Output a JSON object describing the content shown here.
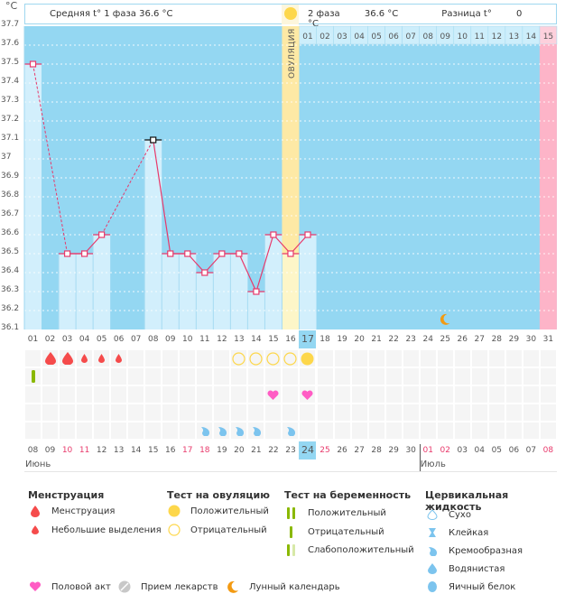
{
  "header": {
    "phase1_label": "Средняя t° 1 фаза",
    "phase1_value": "36.6 °C",
    "phase2_label": "2 фаза",
    "phase2_value": "36.6 °C",
    "diff_label": "Разница t°",
    "diff_value": "0 °C",
    "ovulation_label": "ОВУЛЯЦИЯ"
  },
  "chart_data": {
    "type": "line",
    "title": "",
    "ylabel": "°C",
    "xlabel": "",
    "ylim": [
      36.1,
      37.7
    ],
    "yticks": [
      "37.7",
      "37.6",
      "37.5",
      "37.4",
      "37.3",
      "37.2",
      "37.1",
      "37",
      "36.9",
      "36.8",
      "36.7",
      "36.6",
      "36.5",
      "36.4",
      "36.3",
      "36.2",
      "36.1"
    ],
    "cycle_days": [
      "01",
      "02",
      "03",
      "04",
      "05",
      "06",
      "07",
      "08",
      "09",
      "10",
      "11",
      "12",
      "13",
      "14",
      "15",
      "16",
      "17",
      "18",
      "19",
      "20",
      "21",
      "22",
      "23",
      "24",
      "25",
      "26",
      "27",
      "28",
      "29",
      "30",
      "31"
    ],
    "phase2_day_labels": [
      "01",
      "02",
      "03",
      "04",
      "05",
      "06",
      "07",
      "08",
      "09",
      "10",
      "11",
      "12",
      "13",
      "14",
      "15"
    ],
    "temperatures": [
      37.5,
      null,
      36.5,
      36.5,
      36.6,
      null,
      null,
      37.1,
      36.5,
      36.5,
      36.4,
      36.5,
      36.5,
      36.3,
      36.6,
      36.5,
      36.6,
      null,
      null,
      null,
      null,
      null,
      null,
      null,
      null,
      null,
      null,
      null,
      null,
      null,
      null
    ],
    "excluded_days": [
      8
    ],
    "ovulation_day": 16,
    "current_day": 17,
    "next_period_day": 31,
    "calendar_dates": [
      "08",
      "09",
      "10",
      "11",
      "12",
      "13",
      "14",
      "15",
      "16",
      "17",
      "18",
      "19",
      "20",
      "21",
      "22",
      "23",
      "24",
      "25",
      "26",
      "27",
      "28",
      "29",
      "30",
      "01",
      "02",
      "03",
      "04",
      "05",
      "06",
      "07",
      "08"
    ],
    "weekend_dates_idx": [
      2,
      3,
      9,
      10,
      17,
      23,
      24,
      30
    ],
    "months": [
      {
        "label": "Июнь",
        "start_idx": 0
      },
      {
        "label": "Июль",
        "start_idx": 23
      }
    ],
    "moon_day": 25,
    "markers": {
      "menstruation_heavy_days": [
        2,
        3
      ],
      "menstruation_light_days": [
        4,
        5,
        6
      ],
      "ovulation_test_negative_days": [
        13,
        14,
        15,
        16
      ],
      "ovulation_test_positive_days": [
        17
      ],
      "pregnancy_test_negative_days": [
        1
      ],
      "intercourse_days": [
        15,
        17
      ],
      "cervical_creamy_days": [
        11,
        12,
        13,
        14,
        16
      ]
    }
  },
  "colors": {
    "chart_bg": "#94d7f2",
    "bar_fill": "#d2effc",
    "ovulation": "#fde9a5",
    "period": "#fdb4c8",
    "line": "#e8396b",
    "current_day": "#94d7f2",
    "weekend": "#e8396b"
  },
  "legend": {
    "menstruation": {
      "title": "Менструация",
      "items": [
        "Менструация",
        "Небольшие выделения"
      ]
    },
    "ovulation_test": {
      "title": "Тест на овуляцию",
      "items": [
        "Положительный",
        "Отрицательный"
      ]
    },
    "pregnancy_test": {
      "title": "Тест на беременность",
      "items": [
        "Положительный",
        "Отрицательный",
        "Слабоположительный"
      ]
    },
    "cervical": {
      "title": "Цервикальная жидкость",
      "items": [
        "Сухо",
        "Клейкая",
        "Кремообразная",
        "Водянистая",
        "Яичный белок"
      ]
    },
    "other": [
      "Половой акт",
      "Прием лекарств",
      "Лунный календарь"
    ]
  }
}
